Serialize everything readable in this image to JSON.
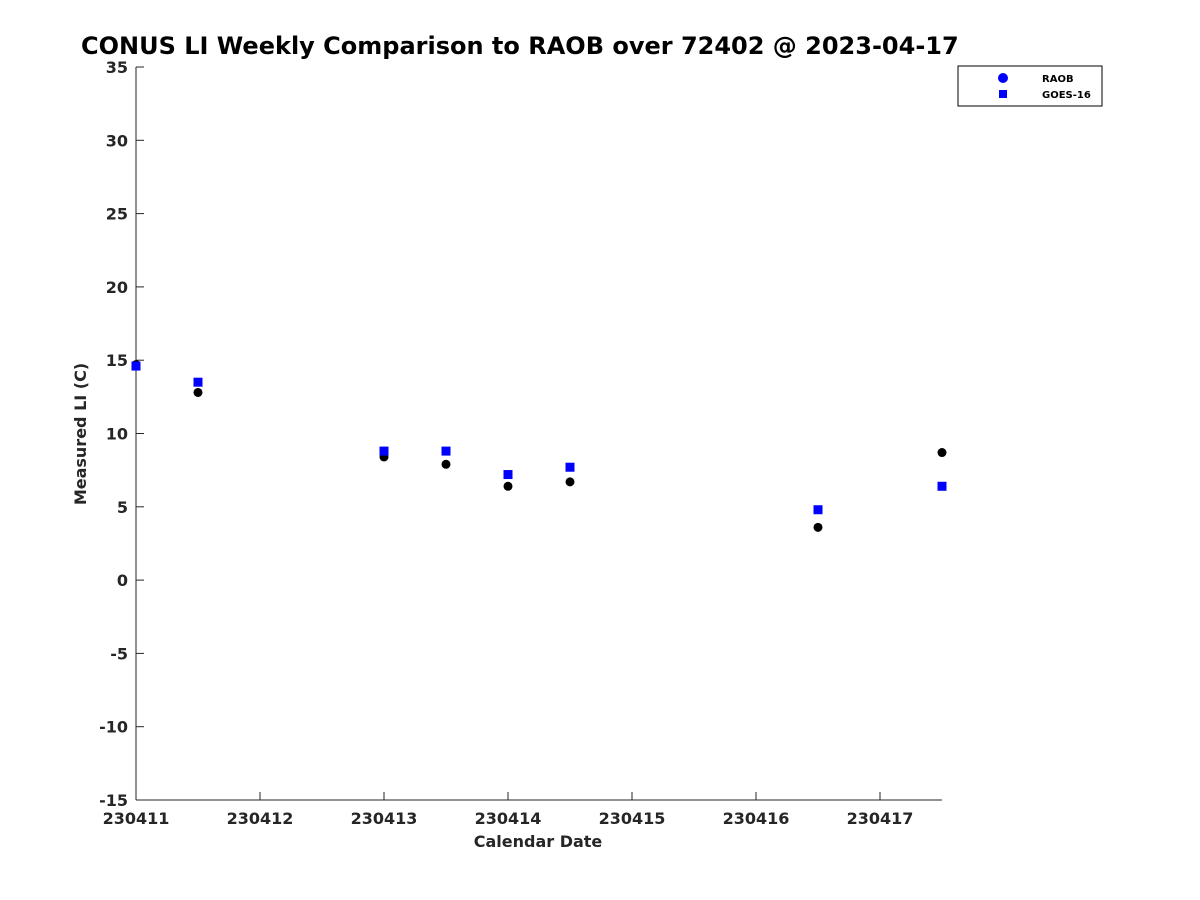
{
  "chart_data": {
    "type": "scatter",
    "title": "CONUS LI Weekly Comparison to RAOB over 72402 @ 2023-04-17",
    "xlabel": "Calendar Date",
    "ylabel": "Measured LI (C)",
    "x_tick_labels": [
      "230411",
      "230412",
      "230413",
      "230414",
      "230415",
      "230416",
      "230417"
    ],
    "y_ticks": [
      -15,
      -10,
      -5,
      0,
      5,
      10,
      15,
      20,
      25,
      30,
      35
    ],
    "xlim": [
      0,
      6.5
    ],
    "ylim": [
      -15,
      35
    ],
    "grid": false,
    "legend_position": "top-right",
    "series": [
      {
        "name": "RAOB",
        "marker": "circle",
        "color": "#000000",
        "legend_color": "#0000ff",
        "points": [
          {
            "x": 0.0,
            "y": 14.7
          },
          {
            "x": 0.5,
            "y": 12.8
          },
          {
            "x": 2.0,
            "y": 8.4
          },
          {
            "x": 2.5,
            "y": 7.9
          },
          {
            "x": 3.0,
            "y": 6.4
          },
          {
            "x": 3.5,
            "y": 6.7
          },
          {
            "x": 5.5,
            "y": 3.6
          },
          {
            "x": 6.5,
            "y": 8.7
          }
        ]
      },
      {
        "name": "GOES-16",
        "marker": "square",
        "color": "#0000ff",
        "legend_color": "#0000ff",
        "points": [
          {
            "x": 0.0,
            "y": 14.6
          },
          {
            "x": 0.5,
            "y": 13.5
          },
          {
            "x": 2.0,
            "y": 8.8
          },
          {
            "x": 2.5,
            "y": 8.8
          },
          {
            "x": 3.0,
            "y": 7.2
          },
          {
            "x": 3.5,
            "y": 7.7
          },
          {
            "x": 5.5,
            "y": 4.8
          },
          {
            "x": 6.5,
            "y": 6.4
          }
        ]
      }
    ]
  }
}
